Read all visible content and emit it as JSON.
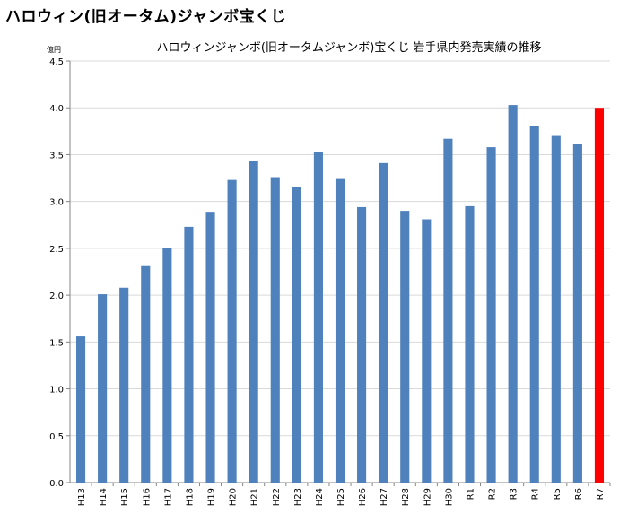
{
  "page": {
    "heading": "ハロウィン(旧オータム)ジャンボ宝くじ"
  },
  "chart_data": {
    "type": "bar",
    "title": "ハロウィンジャンボ(旧オータムジャンボ)宝くじ 岩手県内発売実績の推移",
    "ylabel": "億円",
    "xlabel": "",
    "ylim": [
      0,
      4.5
    ],
    "yticks": [
      "0.0",
      "0.5",
      "1.0",
      "1.5",
      "2.0",
      "2.5",
      "3.0",
      "3.5",
      "4.0",
      "4.5"
    ],
    "grid": true,
    "categories": [
      "H13",
      "H14",
      "H15",
      "H16",
      "H17",
      "H18",
      "H19",
      "H20",
      "H21",
      "H22",
      "H23",
      "H24",
      "H25",
      "H26",
      "H27",
      "H28",
      "H29",
      "H30",
      "R1",
      "R2",
      "R3",
      "R4",
      "R5",
      "R6",
      "R7"
    ],
    "values": [
      1.56,
      2.01,
      2.08,
      2.31,
      2.5,
      2.73,
      2.89,
      3.23,
      3.43,
      3.26,
      3.15,
      3.53,
      3.24,
      2.94,
      3.41,
      2.9,
      2.81,
      3.67,
      2.95,
      3.58,
      4.03,
      3.81,
      3.7,
      3.61,
      4.0
    ],
    "colors": {
      "default": "#4f81bd",
      "highlight": "#ff0000",
      "grid": "#d9d9d9",
      "axis": "#868686"
    },
    "highlight_categories": [
      "R7"
    ]
  }
}
